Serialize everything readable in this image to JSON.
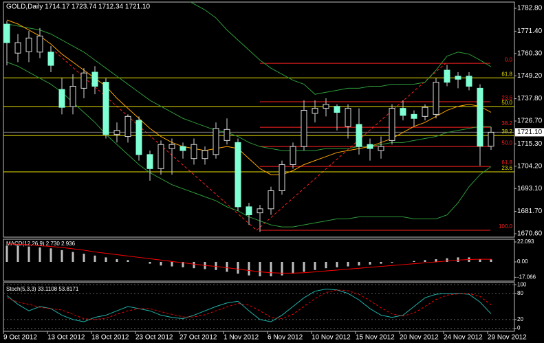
{
  "chart_data": [
    {
      "type": "candlestick",
      "title": "GOLD,Daily  1714.17 1723.74 1712.34 1721.10",
      "categories": [
        "9 Oct 2012",
        null,
        null,
        null,
        "13 Oct 2012",
        null,
        null,
        null,
        "18 Oct 2012",
        null,
        null,
        null,
        "23 Oct 2012",
        null,
        null,
        null,
        "27 Oct 2012",
        null,
        null,
        null,
        "1 Nov 2012",
        null,
        null,
        null,
        "6 Nov 2012",
        null,
        null,
        null,
        "10 Nov 2012",
        null,
        null,
        null,
        "15 Nov 2012",
        null,
        null,
        null,
        "20 Nov 2012",
        null,
        null,
        null,
        "24 Nov 2012",
        null,
        null,
        null,
        "29 Nov 2012"
      ],
      "open": [
        1774.9,
        1760.5,
        1761.2,
        1761,
        1761,
        1742.4,
        1733.9,
        1743,
        1751,
        1746,
        1720,
        1719,
        1727,
        1710,
        1703,
        1713,
        1714,
        1708,
        1708,
        1710,
        1717,
        1716,
        1684,
        1681,
        1683,
        1692,
        1705,
        1714,
        1730.5,
        1733,
        1734,
        1724,
        1725,
        1715,
        1712,
        1717,
        1733,
        1730,
        1729,
        1730,
        1752,
        1749,
        1749,
        1743,
        1714.17
      ],
      "high": [
        1776.5,
        1770,
        1771.5,
        1773,
        1764,
        1748,
        1750,
        1753,
        1754,
        1748,
        1726,
        1730,
        1729,
        1712,
        1717,
        1718,
        1716,
        1718,
        1714,
        1726,
        1728,
        1718,
        1686,
        1685,
        1694,
        1707,
        1716,
        1737,
        1737,
        1738,
        1735,
        1735,
        1733,
        1718,
        1719,
        1735,
        1737,
        1732,
        1735,
        1748,
        1754.7,
        1751,
        1751,
        1745,
        1723.74
      ],
      "low": [
        1754.4,
        1756,
        1756,
        1758,
        1751,
        1730,
        1730,
        1738,
        1740,
        1718,
        1716,
        1716,
        1707,
        1697,
        1700,
        1700,
        1708,
        1705,
        1705,
        1708,
        1715,
        1682,
        1675,
        1671.5,
        1680,
        1690,
        1703,
        1712,
        1726,
        1729,
        1722,
        1718,
        1710,
        1707,
        1708,
        1715,
        1727,
        1724,
        1727,
        1728,
        1744,
        1743,
        1742,
        1704.5,
        1712.34
      ],
      "close": [
        1765.7,
        1765.7,
        1768,
        1769,
        1754.4,
        1733.5,
        1744,
        1750.6,
        1744,
        1720,
        1722,
        1729,
        1710,
        1703,
        1715,
        1715,
        1712,
        1715,
        1712,
        1723,
        1722.5,
        1684,
        1680,
        1683,
        1692,
        1705,
        1714,
        1732,
        1733,
        1735,
        1731,
        1733,
        1714,
        1713,
        1714,
        1733,
        1729.5,
        1728,
        1733.5,
        1746,
        1746,
        1747.5,
        1744,
        1714.2,
        1721.1
      ],
      "bull_color": "#000000",
      "bear_color": "#7fffd4",
      "wick_color": "#d8d8d8",
      "bands": {
        "color": "#2e9b3a",
        "upper": [
          1795,
          1797,
          1799,
          1801,
          1803,
          1804,
          1805,
          1806,
          1805,
          1803,
          1800,
          1797,
          1795,
          1793,
          1791,
          1790,
          1788,
          1785,
          1782,
          1778,
          1772,
          1767,
          1762,
          1757,
          1753,
          1750,
          1747,
          1745,
          1740,
          1741,
          1742,
          1743,
          1743,
          1744,
          1744,
          1745,
          1745,
          1745,
          1746,
          1752,
          1759,
          1761,
          1760,
          1757,
          1753.7
        ],
        "middle": [
          1775,
          1774,
          1773,
          1772,
          1770,
          1767,
          1764,
          1761,
          1757,
          1753,
          1749,
          1745,
          1741,
          1737,
          1734,
          1731,
          1728,
          1726,
          1724,
          1722,
          1721,
          1719,
          1716,
          1714,
          1713,
          1712,
          1712,
          1712,
          1712,
          1713,
          1713,
          1713,
          1714,
          1714,
          1715,
          1716,
          1716,
          1717,
          1718,
          1719,
          1721,
          1722,
          1723,
          1724,
          1724
        ],
        "lower": [
          1756,
          1754,
          1751,
          1748,
          1745,
          1741,
          1736,
          1731,
          1726,
          1720,
          1715,
          1710,
          1705,
          1701,
          1698,
          1695,
          1693,
          1691,
          1689,
          1687,
          1684,
          1682,
          1679,
          1677,
          1675,
          1674,
          1674,
          1675,
          1676,
          1677,
          1678,
          1678,
          1679,
          1679,
          1679,
          1679,
          1679,
          1678,
          1678,
          1678,
          1680,
          1686,
          1694,
          1700,
          1704
        ]
      },
      "moving_average": {
        "color": "#ffa500",
        "values": [
          1777,
          1775,
          1772,
          1769,
          1765,
          1760,
          1756,
          1752,
          1748,
          1744,
          1738,
          1733,
          1728,
          1723,
          1719,
          1716,
          1714,
          1713,
          1712,
          1713,
          1714,
          1713,
          1708,
          1703,
          1700,
          1700,
          1702,
          1705,
          1707,
          1709,
          1711,
          1712,
          1713,
          1714,
          1716,
          1718,
          1721,
          1724,
          1726,
          1729,
          1732,
          1734,
          1735,
          1734,
          1731
        ]
      },
      "fibonacci": [
        {
          "label": "0.0",
          "price": 1755.4,
          "color": "#ff2020",
          "span": "from-low"
        },
        {
          "label": "61.8",
          "price": 1748.2,
          "color": "#e8e000",
          "span": "full"
        },
        {
          "label": "23.6",
          "price": 1736.3,
          "color": "#ff2020",
          "span": "from-low"
        },
        {
          "label": "50.0",
          "price": 1733.9,
          "color": "#e8e000",
          "span": "full"
        },
        {
          "label": "38.2",
          "price": 1723.6,
          "color": "#ff2020",
          "span": "from-low"
        },
        {
          "label": "38.2",
          "price": 1719.5,
          "color": "#e8e000",
          "span": "full"
        },
        {
          "label": "50.0",
          "price": 1714.0,
          "color": "#ff2020",
          "span": "from-low"
        },
        {
          "label": "61.8",
          "price": 1704.1,
          "color": "#ff2020",
          "span": "from-low"
        },
        {
          "label": "23.6",
          "price": 1701.4,
          "color": "#e8e000",
          "span": "full"
        },
        {
          "label": "100.0",
          "price": 1672.3,
          "color": "#ff2020",
          "span": "from-low"
        }
      ],
      "current_price": {
        "value": 1721.1,
        "label": "1721.10"
      },
      "ylim": [
        1668.9,
        1785.9
      ],
      "yticks": [
        {
          "value": 1782.8,
          "label": "1782.80"
        },
        {
          "value": 1771.4,
          "label": "1771.40"
        },
        {
          "value": 1760.3,
          "label": "1760.30"
        },
        {
          "value": 1749.2,
          "label": "1749.20"
        },
        {
          "value": 1737.8,
          "label": "1737.80"
        },
        {
          "value": 1726.7,
          "label": "1726.70"
        },
        {
          "value": 1715.3,
          "label": "1715.30"
        },
        {
          "value": 1704.2,
          "label": "1704.20"
        },
        {
          "value": 1693.1,
          "label": "1693.10"
        },
        {
          "value": 1681.7,
          "label": "1681.70"
        },
        {
          "value": 1670.6,
          "label": "1670.60"
        }
      ]
    },
    {
      "type": "macd",
      "title": "MACD(12,26,9) 2.730 2.936",
      "values": [
        18,
        18,
        17,
        16,
        15,
        13,
        11,
        9,
        7,
        5,
        3,
        2,
        0,
        -2,
        -4,
        -5,
        -6,
        -7,
        -8,
        -9,
        -11,
        -13,
        -15,
        -16,
        -16,
        -15,
        -13,
        -11,
        -9,
        -7,
        -6,
        -5,
        -4,
        -3,
        -2,
        -1,
        0,
        1,
        2,
        3,
        4,
        5,
        5,
        3,
        2.73
      ],
      "signal": [
        20,
        19.5,
        19,
        18,
        17,
        16,
        14.5,
        13,
        11,
        9.5,
        8,
        6.5,
        5,
        3.5,
        2,
        0.5,
        -1,
        -2.5,
        -4,
        -5,
        -6.5,
        -8,
        -9.5,
        -11,
        -12,
        -12.5,
        -12.5,
        -12,
        -11,
        -10,
        -9,
        -8,
        -7,
        -6,
        -5,
        -4,
        -3,
        -2,
        -1,
        0,
        1,
        2,
        2.7,
        3,
        2.936
      ],
      "color": "#c0c0c0",
      "signal_color": "#ff0000",
      "ylim": [
        -21.33,
        25.14
      ],
      "yticks": [
        22.093,
        {
          "value": 0,
          "label": "0.00"
        },
        -17.066
      ]
    },
    {
      "type": "stochastic",
      "title": "Stoch(5,3,3) 33.1108 53.8171",
      "k": [
        75,
        55,
        40,
        50,
        45,
        30,
        20,
        15,
        25,
        30,
        40,
        50,
        45,
        40,
        30,
        25,
        22,
        30,
        40,
        50,
        58,
        62,
        40,
        20,
        15,
        30,
        50,
        70,
        85,
        90,
        88,
        80,
        65,
        45,
        30,
        25,
        30,
        50,
        70,
        78,
        80,
        80,
        78,
        60,
        33.1108
      ],
      "d": [
        70,
        60,
        55,
        48,
        45,
        42,
        32,
        22,
        20,
        23,
        32,
        40,
        45,
        45,
        38,
        32,
        26,
        26,
        31,
        40,
        49,
        57,
        53,
        40,
        25,
        22,
        32,
        50,
        68,
        82,
        88,
        86,
        78,
        63,
        47,
        33,
        28,
        35,
        50,
        66,
        76,
        79,
        79,
        73,
        53.8171
      ],
      "k_color": "#20b2aa",
      "d_color": "#ff0000",
      "ylim": [
        -7,
        105
      ],
      "yticks": [
        100,
        80,
        20,
        0
      ]
    }
  ]
}
